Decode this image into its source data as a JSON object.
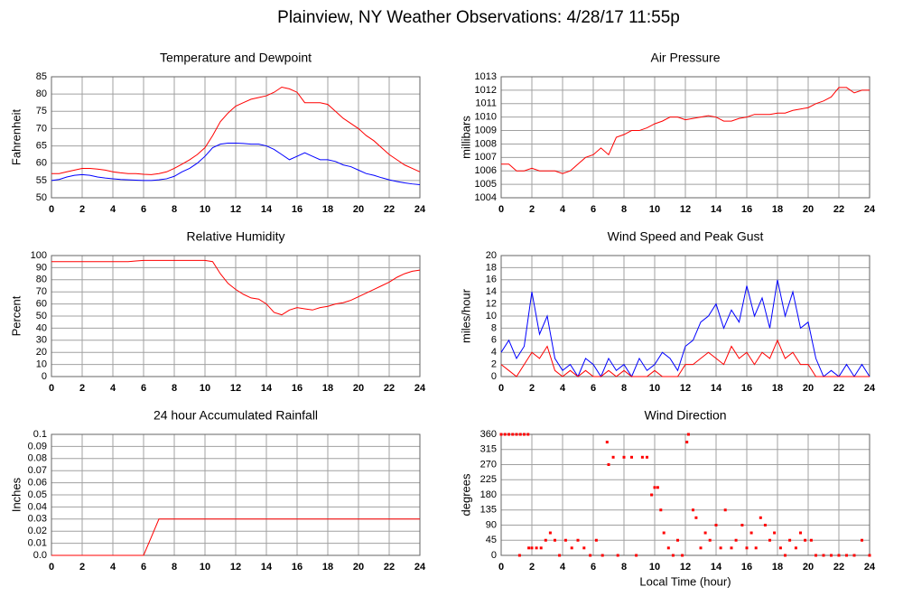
{
  "title": "Plainview, NY Weather Observations: 4/28/17 11:55p",
  "chart_data": [
    {
      "type": "line",
      "title": "Temperature and Dewpoint",
      "y_label": "Fahrenheit",
      "grid": true,
      "xlim": [
        0,
        24
      ],
      "xticks": [
        0,
        2,
        4,
        6,
        8,
        10,
        12,
        14,
        16,
        18,
        20,
        22,
        24
      ],
      "ylim": [
        50,
        85
      ],
      "yticks": [
        50,
        55,
        60,
        65,
        70,
        75,
        80,
        85
      ],
      "x": [
        0,
        0.5,
        1,
        1.5,
        2,
        2.5,
        3,
        3.5,
        4,
        4.5,
        5,
        5.5,
        6,
        6.5,
        7,
        7.5,
        8,
        8.5,
        9,
        9.5,
        10,
        10.5,
        11,
        11.5,
        12,
        12.5,
        13,
        13.5,
        14,
        14.5,
        15,
        15.5,
        16,
        16.5,
        17,
        17.5,
        18,
        18.5,
        19,
        19.5,
        20,
        20.5,
        21,
        21.5,
        22,
        22.5,
        23,
        23.5,
        24
      ],
      "series": [
        {
          "color": "#ff0000",
          "values": [
            57,
            57,
            57.5,
            58,
            58.5,
            58.5,
            58.3,
            58,
            57.5,
            57.2,
            57,
            57,
            56.8,
            56.7,
            57,
            57.5,
            58.5,
            59.7,
            61,
            62.5,
            64.5,
            68,
            72,
            74.5,
            76.5,
            77.5,
            78.5,
            79,
            79.5,
            80.5,
            82,
            81.5,
            80.5,
            77.5,
            77.5,
            77.5,
            77,
            75,
            73,
            71.5,
            70,
            68,
            66.5,
            64.5,
            62.5,
            61,
            59.5,
            58.5,
            57.5
          ]
        },
        {
          "color": "#0000ff",
          "values": [
            55,
            55.3,
            56,
            56.5,
            56.7,
            56.5,
            56,
            55.7,
            55.5,
            55.3,
            55.2,
            55.1,
            55,
            55,
            55.2,
            55.5,
            56.2,
            57.5,
            58.5,
            60,
            62,
            64.5,
            65.5,
            65.8,
            65.8,
            65.7,
            65.5,
            65.5,
            65,
            64,
            62.5,
            61,
            62,
            63,
            62,
            61,
            61,
            60.5,
            59.5,
            59,
            58,
            57,
            56.5,
            55.8,
            55.2,
            54.7,
            54.3,
            54,
            53.8
          ]
        }
      ]
    },
    {
      "type": "line",
      "title": "Air Pressure",
      "y_label": "millibars",
      "grid": true,
      "xlim": [
        0,
        24
      ],
      "xticks": [
        0,
        2,
        4,
        6,
        8,
        10,
        12,
        14,
        16,
        18,
        20,
        22,
        24
      ],
      "ylim": [
        1004,
        1013
      ],
      "yticks": [
        1004,
        1005,
        1006,
        1007,
        1008,
        1009,
        1010,
        1011,
        1012,
        1013
      ],
      "x": [
        0,
        0.5,
        1,
        1.5,
        2,
        2.5,
        3,
        3.5,
        4,
        4.5,
        5,
        5.5,
        6,
        6.5,
        7,
        7.5,
        8,
        8.5,
        9,
        9.5,
        10,
        10.5,
        11,
        11.5,
        12,
        12.5,
        13,
        13.5,
        14,
        14.5,
        15,
        15.5,
        16,
        16.5,
        17,
        17.5,
        18,
        18.5,
        19,
        19.5,
        20,
        20.5,
        21,
        21.5,
        22,
        22.5,
        23,
        23.5,
        24
      ],
      "series": [
        {
          "color": "#ff0000",
          "values": [
            1006.5,
            1006.5,
            1006,
            1006,
            1006.2,
            1006,
            1006,
            1006,
            1005.8,
            1006,
            1006.5,
            1007,
            1007.2,
            1007.7,
            1007.2,
            1008.5,
            1008.7,
            1009,
            1009,
            1009.2,
            1009.5,
            1009.7,
            1010,
            1010,
            1009.8,
            1009.9,
            1010,
            1010.1,
            1010,
            1009.7,
            1009.7,
            1009.9,
            1010,
            1010.2,
            1010.2,
            1010.2,
            1010.3,
            1010.3,
            1010.5,
            1010.6,
            1010.7,
            1011,
            1011.2,
            1011.5,
            1012.2,
            1012.2,
            1011.8,
            1012,
            1012
          ]
        }
      ]
    },
    {
      "type": "line",
      "title": "Relative Humidity",
      "y_label": "Percent",
      "grid": true,
      "xlim": [
        0,
        24
      ],
      "xticks": [
        0,
        2,
        4,
        6,
        8,
        10,
        12,
        14,
        16,
        18,
        20,
        22,
        24
      ],
      "ylim": [
        0,
        100
      ],
      "yticks": [
        0,
        10,
        20,
        30,
        40,
        50,
        60,
        70,
        80,
        90,
        100
      ],
      "x": [
        0,
        0.5,
        1,
        1.5,
        2,
        2.5,
        3,
        3.5,
        4,
        4.5,
        5,
        5.5,
        6,
        6.5,
        7,
        7.5,
        8,
        8.5,
        9,
        9.5,
        10,
        10.5,
        11,
        11.5,
        12,
        12.5,
        13,
        13.5,
        14,
        14.5,
        15,
        15.5,
        16,
        16.5,
        17,
        17.5,
        18,
        18.5,
        19,
        19.5,
        20,
        20.5,
        21,
        21.5,
        22,
        22.5,
        23,
        23.5,
        24
      ],
      "series": [
        {
          "color": "#ff0000",
          "values": [
            95,
            95,
            95,
            95,
            95,
            95,
            95,
            95,
            95,
            95,
            95,
            95.5,
            96,
            96,
            96,
            96,
            96,
            96,
            96,
            96,
            96,
            95,
            85,
            77,
            72,
            68,
            65,
            64,
            60,
            53,
            51,
            55,
            57,
            56,
            55,
            57,
            58,
            60,
            61,
            63,
            66,
            69,
            72,
            75,
            78,
            82,
            85,
            87,
            88
          ]
        }
      ]
    },
    {
      "type": "line",
      "title": "Wind Speed and Peak Gust",
      "y_label": "miles/hour",
      "grid": true,
      "xlim": [
        0,
        24
      ],
      "xticks": [
        0,
        2,
        4,
        6,
        8,
        10,
        12,
        14,
        16,
        18,
        20,
        22,
        24
      ],
      "ylim": [
        0,
        20
      ],
      "yticks": [
        0,
        2,
        4,
        6,
        8,
        10,
        12,
        14,
        16,
        18,
        20
      ],
      "x": [
        0,
        0.5,
        1,
        1.5,
        2,
        2.5,
        3,
        3.5,
        4,
        4.5,
        5,
        5.5,
        6,
        6.5,
        7,
        7.5,
        8,
        8.5,
        9,
        9.5,
        10,
        10.5,
        11,
        11.5,
        12,
        12.5,
        13,
        13.5,
        14,
        14.5,
        15,
        15.5,
        16,
        16.5,
        17,
        17.5,
        18,
        18.5,
        19,
        19.5,
        20,
        20.5,
        21,
        21.5,
        22,
        22.5,
        23,
        23.5,
        24
      ],
      "series": [
        {
          "color": "#0000ff",
          "values": [
            4,
            6,
            3,
            5,
            14,
            7,
            10,
            3,
            1,
            2,
            0,
            3,
            2,
            0,
            3,
            1,
            2,
            0,
            3,
            1,
            2,
            4,
            3,
            1,
            5,
            6,
            9,
            10,
            12,
            8,
            11,
            9,
            15,
            10,
            13,
            8,
            16,
            10,
            14,
            8,
            9,
            3,
            0,
            1,
            0,
            2,
            0,
            2,
            0
          ]
        },
        {
          "color": "#ff0000",
          "values": [
            2,
            1,
            0,
            2,
            4,
            3,
            5,
            1,
            0,
            1,
            0,
            1,
            0,
            0,
            1,
            0,
            1,
            0,
            0,
            0,
            1,
            0,
            0,
            0,
            2,
            2,
            3,
            4,
            3,
            2,
            5,
            3,
            4,
            2,
            4,
            3,
            6,
            3,
            4,
            2,
            2,
            0,
            0,
            0,
            0,
            0,
            0,
            0,
            0
          ]
        }
      ]
    },
    {
      "type": "line",
      "title": "24 hour Accumulated Rainfall",
      "y_label": "Inches",
      "grid": true,
      "xlim": [
        0,
        24
      ],
      "xticks": [
        0,
        2,
        4,
        6,
        8,
        10,
        12,
        14,
        16,
        18,
        20,
        22,
        24
      ],
      "ylim": [
        0,
        0.1
      ],
      "yticks": [
        {
          "value": 0,
          "label": "0.0"
        },
        0.01,
        0.02,
        0.03,
        0.04,
        0.05,
        0.06,
        0.07,
        0.08,
        0.09,
        0.1
      ],
      "x": [
        0,
        0.5,
        1,
        1.5,
        2,
        2.5,
        3,
        3.5,
        4,
        4.5,
        5,
        5.5,
        6,
        6.5,
        7,
        7.5,
        8,
        8.5,
        9,
        9.5,
        10,
        10.5,
        11,
        11.5,
        12,
        12.5,
        13,
        13.5,
        14,
        14.5,
        15,
        15.5,
        16,
        16.5,
        17,
        17.5,
        18,
        18.5,
        19,
        19.5,
        20,
        20.5,
        21,
        21.5,
        22,
        22.5,
        23,
        23.5,
        24
      ],
      "series": [
        {
          "color": "#ff0000",
          "values": [
            0,
            0,
            0,
            0,
            0,
            0,
            0,
            0,
            0,
            0,
            0,
            0,
            0,
            0.015,
            0.03,
            0.03,
            0.03,
            0.03,
            0.03,
            0.03,
            0.03,
            0.03,
            0.03,
            0.03,
            0.03,
            0.03,
            0.03,
            0.03,
            0.03,
            0.03,
            0.03,
            0.03,
            0.03,
            0.03,
            0.03,
            0.03,
            0.03,
            0.03,
            0.03,
            0.03,
            0.03,
            0.03,
            0.03,
            0.03,
            0.03,
            0.03,
            0.03,
            0.03,
            0.03
          ]
        }
      ]
    },
    {
      "type": "scatter",
      "title": "Wind Direction",
      "y_label": "degrees",
      "x_label": "Local Time (hour)",
      "grid": true,
      "xlim": [
        0,
        24
      ],
      "xticks": [
        0,
        2,
        4,
        6,
        8,
        10,
        12,
        14,
        16,
        18,
        20,
        22,
        24
      ],
      "ylim": [
        0,
        360
      ],
      "yticks": [
        0,
        45,
        90,
        135,
        180,
        225,
        270,
        315,
        360
      ],
      "color": "#ff0000",
      "x": [
        0,
        0.25,
        0.5,
        0.75,
        1,
        1.25,
        1.5,
        1.75,
        1.2,
        1.8,
        2,
        2.3,
        2.6,
        2.9,
        3.2,
        3.5,
        3.8,
        4.2,
        4.6,
        5,
        5.4,
        5.8,
        6.2,
        6.6,
        6.9,
        7,
        7.3,
        7.6,
        8,
        8.5,
        8.8,
        9.2,
        9.5,
        9.8,
        10,
        10.2,
        10.4,
        10.6,
        10.9,
        11.2,
        11.5,
        11.8,
        12.1,
        12.2,
        12.5,
        12.7,
        13,
        13.3,
        13.6,
        14,
        14.3,
        14.6,
        15,
        15.3,
        15.7,
        16,
        16.3,
        16.6,
        16.9,
        17.2,
        17.5,
        17.8,
        18.2,
        18.5,
        18.8,
        19.2,
        19.5,
        19.8,
        20.2,
        20.5,
        21,
        21.5,
        22,
        22.5,
        23,
        23.5,
        24
      ],
      "values": [
        360,
        360,
        360,
        360,
        360,
        360,
        360,
        360,
        0,
        22,
        22,
        22,
        22,
        45,
        67,
        45,
        0,
        45,
        22,
        45,
        22,
        0,
        45,
        0,
        337,
        270,
        292,
        0,
        292,
        292,
        0,
        292,
        292,
        180,
        202,
        202,
        135,
        67,
        22,
        0,
        45,
        0,
        337,
        360,
        135,
        112,
        22,
        67,
        45,
        90,
        22,
        135,
        22,
        45,
        90,
        22,
        67,
        22,
        112,
        90,
        45,
        67,
        22,
        0,
        45,
        22,
        67,
        45,
        45,
        0,
        0,
        0,
        0,
        0,
        0,
        45,
        0
      ]
    }
  ]
}
